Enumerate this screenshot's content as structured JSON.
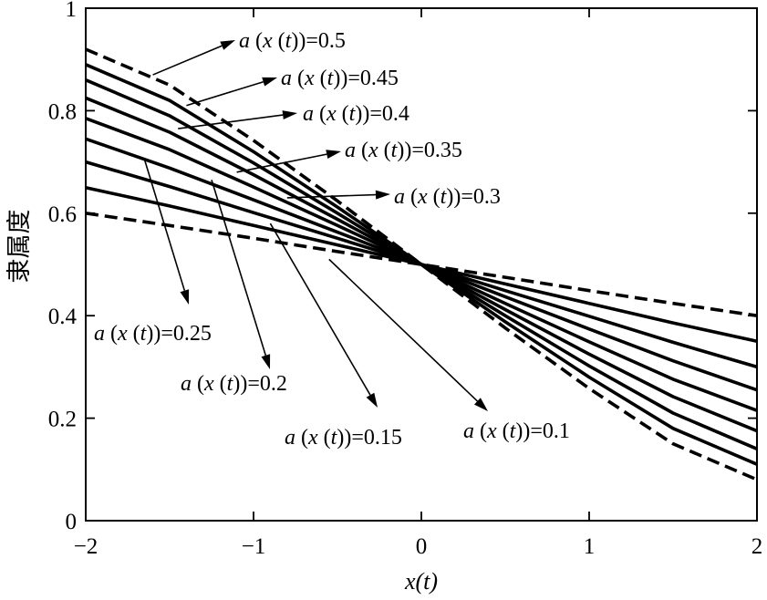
{
  "chart_data": {
    "type": "line",
    "title": "",
    "xlabel": "x(t)",
    "ylabel": "隶属度",
    "xlim": [
      -2,
      2
    ],
    "ylim": [
      0,
      1
    ],
    "xticks": [
      -2,
      -1,
      0,
      1,
      2
    ],
    "xtick_labels": [
      "−2",
      "−1",
      "0",
      "1",
      "2"
    ],
    "yticks": [
      0,
      0.2,
      0.4,
      0.6,
      0.8,
      1
    ],
    "ytick_labels": [
      "0",
      "0.2",
      "0.4",
      "0.6",
      "0.8",
      "1"
    ],
    "grid": false,
    "x": [
      -2,
      -1.5,
      -1,
      -0.5,
      0,
      0.5,
      1,
      1.5,
      2
    ],
    "series": [
      {
        "name": "a(x(t))=0.1",
        "style": "dashed",
        "values": [
          0.6,
          0.576,
          0.551,
          0.525,
          0.5,
          0.475,
          0.449,
          0.424,
          0.4
        ]
      },
      {
        "name": "a(x(t))=0.15",
        "style": "solid",
        "values": [
          0.65,
          0.614,
          0.576,
          0.538,
          0.5,
          0.462,
          0.424,
          0.386,
          0.35
        ]
      },
      {
        "name": "a(x(t))=0.2",
        "style": "solid",
        "values": [
          0.7,
          0.652,
          0.601,
          0.551,
          0.5,
          0.449,
          0.399,
          0.348,
          0.3
        ]
      },
      {
        "name": "a(x(t))=0.25",
        "style": "solid",
        "values": [
          0.745,
          0.688,
          0.626,
          0.563,
          0.5,
          0.437,
          0.374,
          0.312,
          0.255
        ]
      },
      {
        "name": "a(x(t))=0.3",
        "style": "solid",
        "values": [
          0.785,
          0.724,
          0.651,
          0.576,
          0.5,
          0.424,
          0.349,
          0.276,
          0.215
        ]
      },
      {
        "name": "a(x(t))=0.35",
        "style": "solid",
        "values": [
          0.825,
          0.758,
          0.675,
          0.588,
          0.5,
          0.412,
          0.325,
          0.242,
          0.175
        ]
      },
      {
        "name": "a(x(t))=0.4",
        "style": "solid",
        "values": [
          0.86,
          0.79,
          0.698,
          0.6,
          0.5,
          0.4,
          0.302,
          0.21,
          0.14
        ]
      },
      {
        "name": "a(x(t))=0.45",
        "style": "solid",
        "values": [
          0.89,
          0.82,
          0.72,
          0.612,
          0.5,
          0.388,
          0.28,
          0.18,
          0.11
        ]
      },
      {
        "name": "a(x(t))=0.5",
        "style": "dashed",
        "values": [
          0.92,
          0.85,
          0.742,
          0.624,
          0.5,
          0.376,
          0.258,
          0.15,
          0.08
        ]
      }
    ],
    "annotations": [
      {
        "series": "a(x(t))=0.5",
        "label_value": "0.5",
        "point": [
          -1.6,
          0.87
        ]
      },
      {
        "series": "a(x(t))=0.45",
        "label_value": "0.45",
        "point": [
          -1.4,
          0.81
        ]
      },
      {
        "series": "a(x(t))=0.4",
        "label_value": "0.4",
        "point": [
          -1.45,
          0.765
        ]
      },
      {
        "series": "a(x(t))=0.35",
        "label_value": "0.35",
        "point": [
          -1.1,
          0.68
        ]
      },
      {
        "series": "a(x(t))=0.3",
        "label_value": "0.3",
        "point": [
          -0.8,
          0.63
        ]
      },
      {
        "series": "a(x(t))=0.25",
        "label_value": "0.25",
        "point": [
          -1.65,
          0.705
        ]
      },
      {
        "series": "a(x(t))=0.2",
        "label_value": "0.2",
        "point": [
          -1.25,
          0.665
        ]
      },
      {
        "series": "a(x(t))=0.15",
        "label_value": "0.15",
        "point": [
          -0.9,
          0.58
        ]
      },
      {
        "series": "a(x(t))=0.1",
        "label_value": "0.1",
        "point": [
          -0.55,
          0.51
        ]
      }
    ]
  }
}
